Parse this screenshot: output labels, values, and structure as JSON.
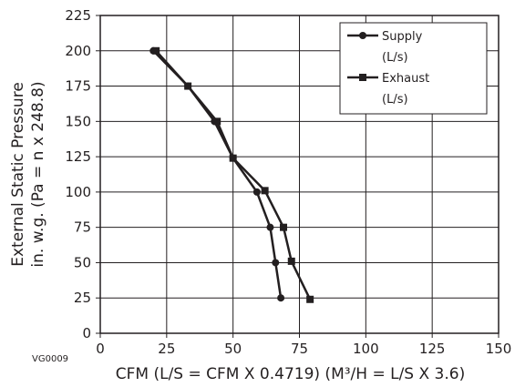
{
  "chart_data": {
    "type": "line",
    "xlabel": "CFM (L/S = CFM X 0.4719) (M³/H = L/S X 3.6)",
    "ylabel_line1": "External Static Pressure",
    "ylabel_line2": "in. w.g. (Pa = n x 248.8)",
    "xlim": [
      0,
      150
    ],
    "ylim": [
      0,
      225
    ],
    "xticks": [
      0,
      25,
      50,
      75,
      100,
      125,
      150
    ],
    "yticks": [
      0,
      25,
      50,
      75,
      100,
      125,
      150,
      175,
      200,
      225
    ],
    "grid": true,
    "legend_position": "top-right",
    "series": [
      {
        "name": "Supply (L/s)",
        "legend_line1": "Supply",
        "legend_line2": "(L/s)",
        "marker": "circle",
        "color": "#231f20",
        "x": [
          20,
          33,
          43,
          50,
          59,
          64,
          66,
          68
        ],
        "y": [
          200,
          175,
          150,
          124,
          100,
          75,
          50,
          25
        ]
      },
      {
        "name": "Exhaust (L/s)",
        "legend_line1": "Exhaust",
        "legend_line2": "(L/s)",
        "marker": "square",
        "color": "#231f20",
        "x": [
          21,
          33,
          44,
          50,
          62,
          69,
          72,
          79
        ],
        "y": [
          200,
          175,
          150,
          124,
          101,
          75,
          51,
          24
        ]
      }
    ]
  },
  "figure_code": "VG0009"
}
